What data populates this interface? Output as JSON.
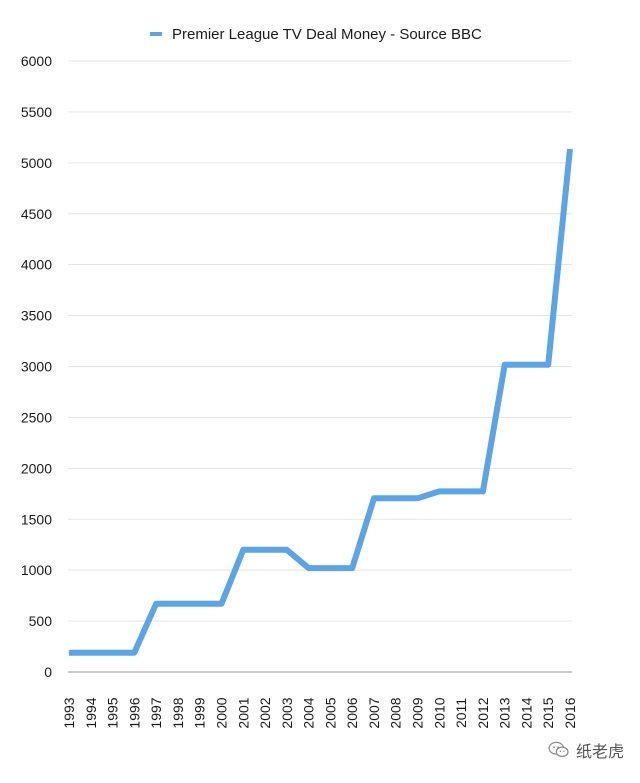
{
  "chart_data": {
    "type": "line",
    "title": "",
    "xlabel": "",
    "ylabel": "",
    "x": [
      "1993",
      "1994",
      "1995",
      "1996",
      "1997",
      "1998",
      "1999",
      "2000",
      "2001",
      "2002",
      "2003",
      "2004",
      "2005",
      "2006",
      "2007",
      "2008",
      "2009",
      "2010",
      "2011",
      "2012",
      "2013",
      "2014",
      "2015",
      "2016"
    ],
    "series": [
      {
        "name": "Premier League TV Deal Money - Source BBC",
        "color": "#5ba4e5",
        "values": [
          190,
          190,
          190,
          190,
          670,
          670,
          670,
          670,
          1200,
          1200,
          1200,
          1020,
          1020,
          1020,
          1706,
          1706,
          1706,
          1773,
          1773,
          1773,
          3018,
          3018,
          3018,
          5136
        ]
      }
    ],
    "yticks": [
      0,
      500,
      1000,
      1500,
      2000,
      2500,
      3000,
      3500,
      4000,
      4500,
      5000,
      5500,
      6000
    ],
    "ylim": [
      0,
      6000
    ],
    "grid": true,
    "legend_position": "top"
  },
  "watermark": {
    "text": "纸老虎",
    "icon": "wechat-icon"
  }
}
